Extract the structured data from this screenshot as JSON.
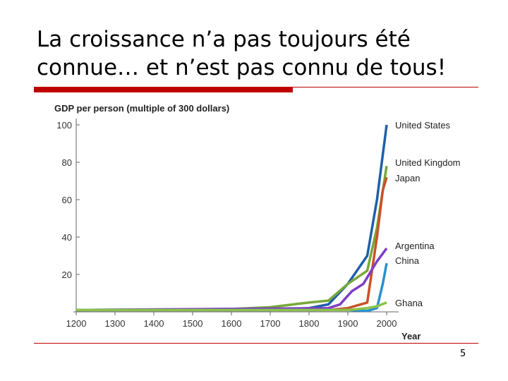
{
  "slide": {
    "title": "La croissance n’a pas toujours été\nconnue… et n’est pas connu de tous!",
    "page_number": "5",
    "accent_color": "#c00000"
  },
  "chart_data": {
    "type": "line",
    "ylabel": "GDP per person (multiple of 300 dollars)",
    "xlabel": "Year",
    "xlim": [
      1200,
      2000
    ],
    "ylim": [
      0,
      100
    ],
    "x_ticks": [
      1200,
      1300,
      1400,
      1500,
      1600,
      1700,
      1800,
      1900,
      2000
    ],
    "y_ticks": [
      20,
      40,
      60,
      80,
      100
    ],
    "grid": false,
    "series": [
      {
        "name": "United States",
        "color": "#1f5fa8",
        "points": [
          [
            1200,
            1
          ],
          [
            1700,
            1
          ],
          [
            1800,
            2
          ],
          [
            1850,
            4
          ],
          [
            1900,
            15
          ],
          [
            1950,
            30
          ],
          [
            1975,
            60
          ],
          [
            2000,
            100
          ]
        ]
      },
      {
        "name": "United Kingdom",
        "color": "#77a83a",
        "points": [
          [
            1200,
            1
          ],
          [
            1600,
            1.5
          ],
          [
            1700,
            2.5
          ],
          [
            1800,
            5
          ],
          [
            1850,
            6
          ],
          [
            1900,
            15
          ],
          [
            1950,
            22
          ],
          [
            1975,
            45
          ],
          [
            2000,
            78
          ]
        ]
      },
      {
        "name": "Japan",
        "color": "#c8522a",
        "points": [
          [
            1200,
            1
          ],
          [
            1850,
            1
          ],
          [
            1900,
            2
          ],
          [
            1950,
            5
          ],
          [
            1975,
            40
          ],
          [
            1990,
            65
          ],
          [
            2000,
            72
          ]
        ]
      },
      {
        "name": "Argentina",
        "color": "#7d3fc4",
        "points": [
          [
            1200,
            1
          ],
          [
            1850,
            2
          ],
          [
            1880,
            4
          ],
          [
            1910,
            11
          ],
          [
            1940,
            15
          ],
          [
            1975,
            27
          ],
          [
            2000,
            34
          ]
        ]
      },
      {
        "name": "China",
        "color": "#2a8fd0",
        "points": [
          [
            1200,
            1
          ],
          [
            1900,
            1
          ],
          [
            1950,
            0.5
          ],
          [
            1975,
            2
          ],
          [
            1990,
            15
          ],
          [
            2000,
            26
          ]
        ]
      },
      {
        "name": "Ghana",
        "color": "#8cc24a",
        "points": [
          [
            1200,
            1
          ],
          [
            1900,
            1
          ],
          [
            1950,
            2
          ],
          [
            1975,
            3
          ],
          [
            2000,
            5
          ]
        ]
      }
    ]
  }
}
